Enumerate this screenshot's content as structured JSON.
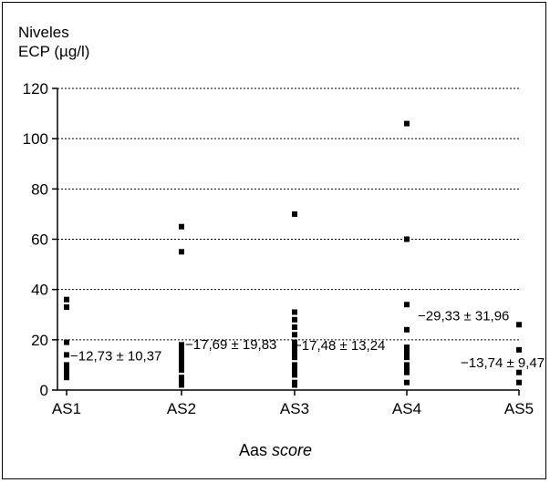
{
  "chart_data": {
    "type": "scatter",
    "ylabel_lines": [
      "Niveles",
      "ECP (µg/l)"
    ],
    "xlabel": "Aas",
    "xlabel_italic": "score",
    "categories": [
      "AS1",
      "AS2",
      "AS3",
      "AS4",
      "AS5"
    ],
    "yticks": [
      "0",
      "20",
      "40",
      "60",
      "80",
      "100",
      "120"
    ],
    "ylim": [
      0,
      120
    ],
    "grid": "horizontal dotted",
    "series": [
      {
        "category": "AS1",
        "values": [
          36,
          33,
          19,
          14,
          10,
          9,
          8,
          7,
          6,
          5
        ],
        "annotation": "−12,73 ± 10,37"
      },
      {
        "category": "AS2",
        "values": [
          65,
          55,
          18,
          17,
          16,
          15,
          14,
          13,
          12,
          11,
          10,
          8,
          5,
          4,
          3,
          2
        ],
        "annotation": "−17,69 ± 19,83"
      },
      {
        "category": "AS3",
        "values": [
          70,
          31,
          28,
          25,
          22,
          19,
          17,
          15,
          13,
          10,
          8,
          6,
          3,
          2
        ],
        "annotation": "−17,48 ± 13,24"
      },
      {
        "category": "AS4",
        "values": [
          106,
          60,
          34,
          24,
          17,
          15,
          13,
          10,
          8,
          7,
          3
        ],
        "annotation": "−29,33 ± 31,96"
      },
      {
        "category": "AS5",
        "values": [
          26,
          16,
          7,
          3
        ],
        "annotation": "−13,74 ± 9,47"
      }
    ]
  }
}
